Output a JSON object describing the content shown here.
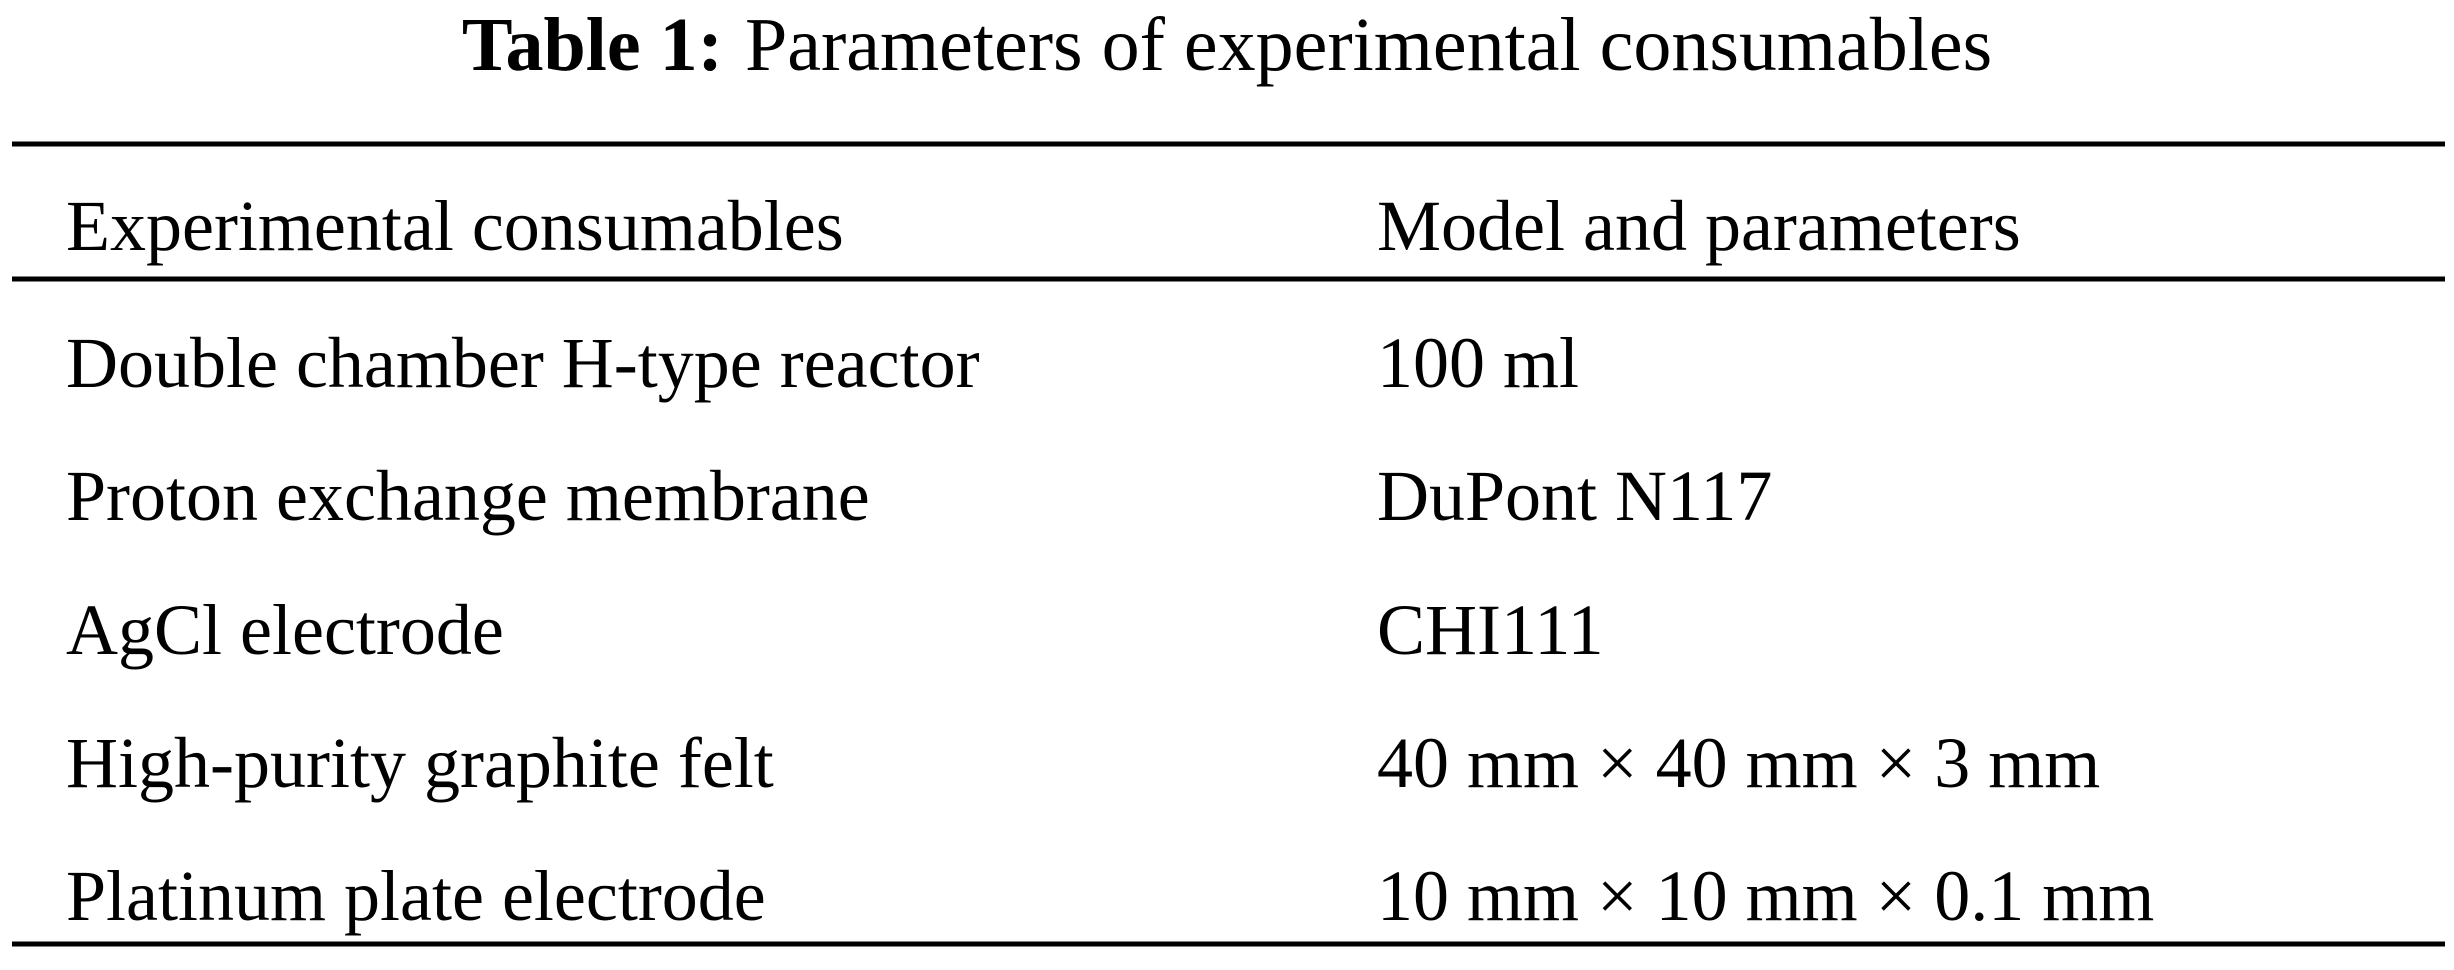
{
  "caption": {
    "label": "Table 1:",
    "text": "Parameters of experimental consumables"
  },
  "table": {
    "header": [
      "Experimental consumables",
      "Model and parameters"
    ],
    "rows": [
      [
        "Double chamber H-type reactor",
        "100 ml"
      ],
      [
        "Proton exchange membrane",
        "DuPont N117"
      ],
      [
        "AgCl electrode",
        "CHI111"
      ],
      [
        "High-purity graphite felt",
        "40 mm × 40 mm × 3 mm"
      ],
      [
        "Platinum plate electrode",
        "10 mm × 10 mm × 0.1 mm"
      ]
    ]
  }
}
